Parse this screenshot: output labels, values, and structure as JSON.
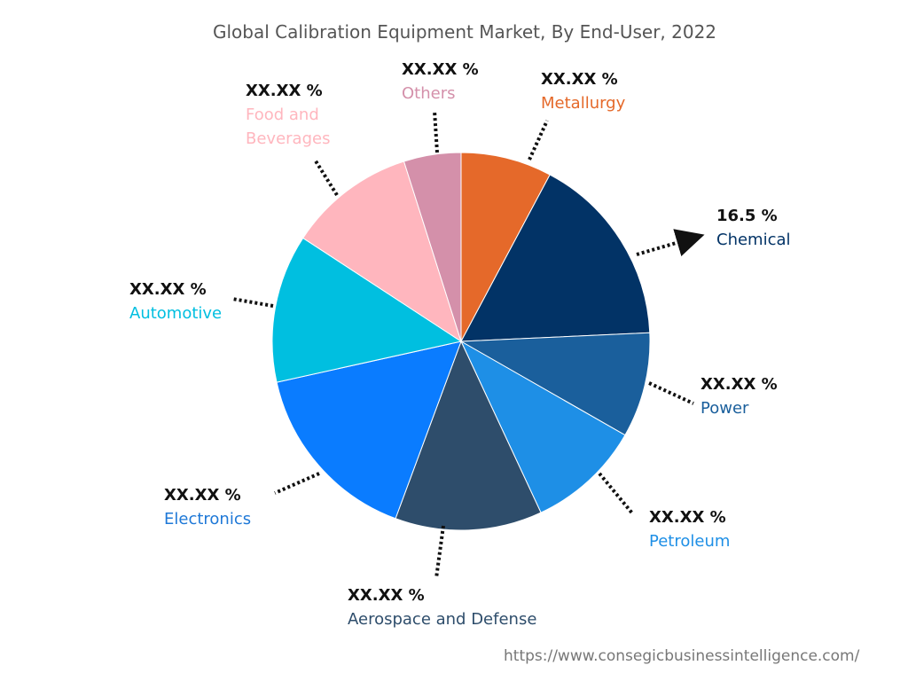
{
  "chart_data": {
    "type": "pie",
    "title": "Global Calibration Equipment Market, By End-User, 2022",
    "slices": [
      {
        "name": "Metallurgy",
        "label": "XX.XX %",
        "value": 7.8,
        "color": "#E5692A"
      },
      {
        "name": "Chemical",
        "label": "16.5 %",
        "value": 16.5,
        "color": "#023366"
      },
      {
        "name": "Power",
        "label": "XX.XX %",
        "value": 9.0,
        "color": "#1A5F9C"
      },
      {
        "name": "Petroleum",
        "label": "XX.XX %",
        "value": 9.8,
        "color": "#1E8FE6"
      },
      {
        "name": "Aerospace and Defense",
        "label": "XX.XX %",
        "value": 12.6,
        "color": "#2E4D6B"
      },
      {
        "name": "Electronics",
        "label": "XX.XX %",
        "value": 15.9,
        "color": "#0A7CFF"
      },
      {
        "name": "Automotive",
        "label": "XX.XX %",
        "value": 12.7,
        "color": "#00BFE0"
      },
      {
        "name": "Food and Beverages",
        "label": "XX.XX %",
        "value": 10.9,
        "color": "#FFB6BE"
      },
      {
        "name": "Others",
        "label": "XX.XX %",
        "value": 4.9,
        "color": "#D490AA"
      }
    ]
  },
  "source": "https://www.consegicbusinessintelligence.com/"
}
